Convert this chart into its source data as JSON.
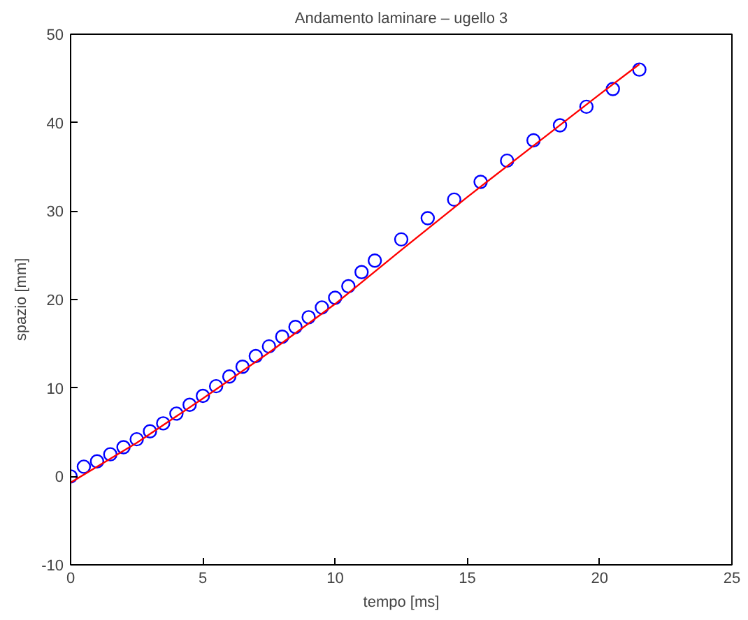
{
  "chart_data": {
    "type": "scatter",
    "title": "Andamento laminare – ugello 3",
    "xlabel": "tempo [ms]",
    "ylabel": "spazio [mm]",
    "xlim": [
      0,
      25
    ],
    "ylim": [
      -10,
      50
    ],
    "xticks": [
      0,
      5,
      10,
      15,
      20,
      25
    ],
    "yticks": [
      -10,
      0,
      10,
      20,
      30,
      40,
      50
    ],
    "grid": false,
    "series": [
      {
        "marker": "circle",
        "color": "#0000ff",
        "x": [
          0,
          0.5,
          1,
          1.5,
          2,
          2.5,
          3,
          3.5,
          4,
          4.5,
          5,
          5.5,
          6,
          6.5,
          7,
          7.5,
          8,
          8.5,
          9,
          9.5,
          10,
          10.5,
          11,
          11.5,
          12.5,
          13.5,
          14.5,
          15.5,
          16.5,
          17.5,
          18.5,
          19.5,
          20.5,
          21.5
        ],
        "values": [
          0,
          1.1,
          1.7,
          2.5,
          3.3,
          4.2,
          5.1,
          6.0,
          7.1,
          8.1,
          9.1,
          10.2,
          11.3,
          12.4,
          13.6,
          14.7,
          15.8,
          16.9,
          18.0,
          19.1,
          20.2,
          21.5,
          23.1,
          24.4,
          26.8,
          29.2,
          31.3,
          33.3,
          35.7,
          38.0,
          39.7,
          41.8,
          43.8,
          46.0
        ]
      },
      {
        "type": "line",
        "marker": "none",
        "color": "#ff0000",
        "line_style": "solid",
        "x": [
          0,
          2.5,
          5,
          7.5,
          10,
          12.5,
          15,
          17.5,
          20,
          21.5
        ],
        "values": [
          -0.7,
          3.8,
          8.8,
          14.0,
          19.5,
          25.6,
          31.6,
          37.4,
          43.2,
          46.6
        ]
      }
    ]
  }
}
